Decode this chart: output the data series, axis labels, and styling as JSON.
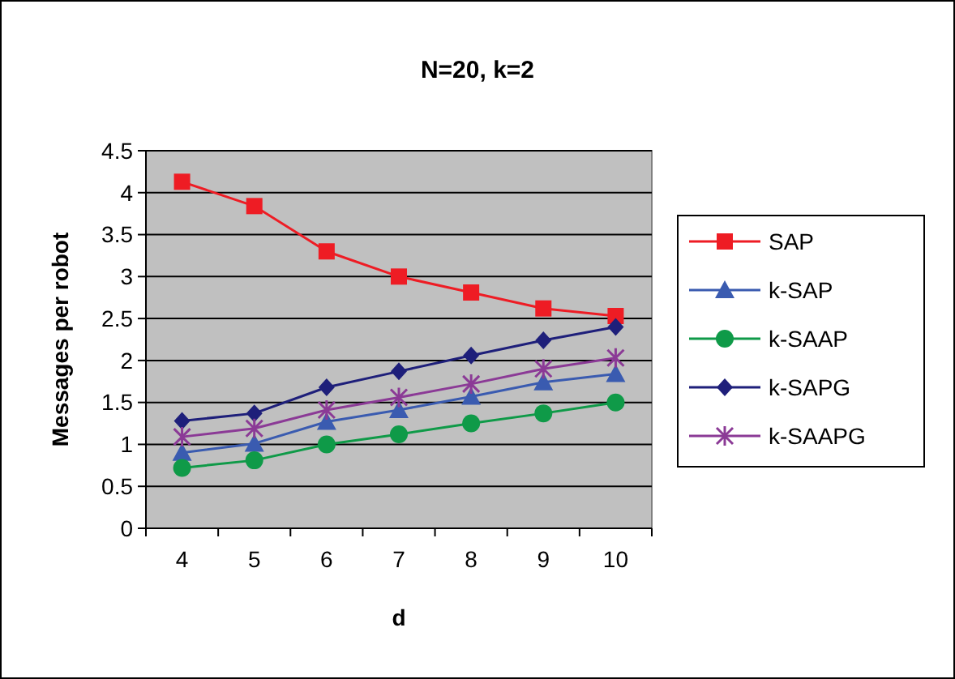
{
  "chart_data": {
    "type": "line",
    "title": "N=20, k=2",
    "xlabel": "d",
    "ylabel": "Messages per robot",
    "categories": [
      "4",
      "5",
      "6",
      "7",
      "8",
      "9",
      "10"
    ],
    "ylim": [
      0,
      4.5
    ],
    "yticks": [
      0,
      0.5,
      1,
      1.5,
      2,
      2.5,
      3,
      3.5,
      4,
      4.5
    ],
    "grid": "y",
    "legend": "right",
    "series": [
      {
        "name": "SAP",
        "color": "#ee1c24",
        "marker": "square",
        "values": [
          4.13,
          3.84,
          3.3,
          3.0,
          2.81,
          2.62,
          2.53
        ]
      },
      {
        "name": "k-SAP",
        "color": "#3a5bb0",
        "marker": "triangle",
        "values": [
          0.9,
          1.01,
          1.27,
          1.41,
          1.57,
          1.74,
          1.84
        ]
      },
      {
        "name": "k-SAAP",
        "color": "#0f9a48",
        "marker": "circle",
        "values": [
          0.72,
          0.81,
          1.0,
          1.12,
          1.25,
          1.37,
          1.5
        ]
      },
      {
        "name": "k-SAPG",
        "color": "#1e1f7a",
        "marker": "diamond",
        "values": [
          1.28,
          1.37,
          1.68,
          1.87,
          2.06,
          2.24,
          2.4
        ]
      },
      {
        "name": "k-SAAPG",
        "color": "#8b3a96",
        "marker": "cross",
        "values": [
          1.09,
          1.19,
          1.41,
          1.56,
          1.72,
          1.9,
          2.03
        ]
      }
    ]
  }
}
